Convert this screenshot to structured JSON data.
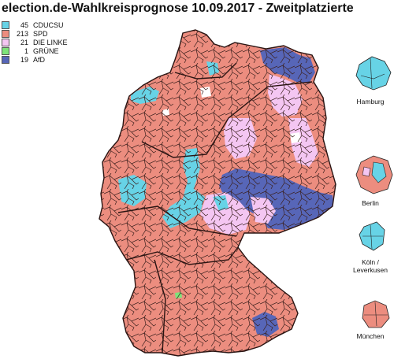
{
  "title": "election.de-Wahlkreisprognose 10.09.2017 - Zweitplatzierte",
  "legend": [
    {
      "count": "45",
      "party": "CDUCSU",
      "color": "#67d3e6"
    },
    {
      "count": "213",
      "party": "SPD",
      "color": "#ec8d7f"
    },
    {
      "count": "21",
      "party": "DIE LINKE",
      "color": "#f4c6f2"
    },
    {
      "count": "1",
      "party": "GRÜNE",
      "color": "#7ee37a"
    },
    {
      "count": "19",
      "party": "AfD",
      "color": "#5766b8"
    }
  ],
  "insets": {
    "hamburg": "Hamburg",
    "berlin": "Berlin",
    "koeln_line1": "Köln /",
    "koeln_line2": "Leverkusen",
    "muenchen": "München"
  }
}
